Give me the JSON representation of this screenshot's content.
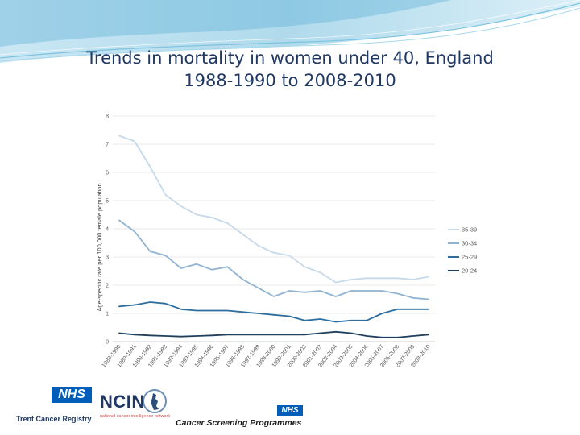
{
  "slide": {
    "title_line1": "Trends in mortality in women under 40, England",
    "title_line2": "1988-1990 to 2008-2010"
  },
  "chart_data": {
    "type": "line",
    "title": "",
    "xlabel": "",
    "ylabel": "Age-specific rate per 100,000 female population",
    "ylim": [
      0,
      8
    ],
    "yticks": [
      0,
      1,
      2,
      3,
      4,
      5,
      6,
      7,
      8
    ],
    "grid": true,
    "legend_position": "right",
    "categories": [
      "1988-1990",
      "1989-1991",
      "1990-1992",
      "1991-1993",
      "1992-1994",
      "1993-1995",
      "1994-1996",
      "1995-1997",
      "1996-1998",
      "1997-1999",
      "1998-2000",
      "1999-2001",
      "2000-2002",
      "2001-2003",
      "2002-2004",
      "2003-2005",
      "2004-2006",
      "2005-2007",
      "2006-2008",
      "2007-2009",
      "2008-2010"
    ],
    "series": [
      {
        "name": "35-39",
        "color": "#c5d9ea",
        "values": [
          7.3,
          7.1,
          6.2,
          5.2,
          4.8,
          4.5,
          4.4,
          4.2,
          3.8,
          3.4,
          3.15,
          3.05,
          2.65,
          2.45,
          2.1,
          2.2,
          2.25,
          2.25,
          2.25,
          2.2,
          2.3
        ]
      },
      {
        "name": "30-34",
        "color": "#8fb3d1",
        "values": [
          4.3,
          3.9,
          3.2,
          3.05,
          2.6,
          2.75,
          2.55,
          2.65,
          2.2,
          1.9,
          1.6,
          1.8,
          1.75,
          1.8,
          1.6,
          1.8,
          1.8,
          1.8,
          1.7,
          1.55,
          1.5
        ]
      },
      {
        "name": "25-29",
        "color": "#2e6e9e",
        "values": [
          1.25,
          1.3,
          1.4,
          1.35,
          1.15,
          1.1,
          1.1,
          1.1,
          1.05,
          1.0,
          0.95,
          0.9,
          0.75,
          0.8,
          0.7,
          0.75,
          0.75,
          1.0,
          1.15,
          1.15,
          1.15
        ]
      },
      {
        "name": "20-24",
        "color": "#1f3f5e",
        "values": [
          0.3,
          0.25,
          0.22,
          0.2,
          0.18,
          0.2,
          0.22,
          0.25,
          0.25,
          0.25,
          0.25,
          0.25,
          0.25,
          0.3,
          0.35,
          0.3,
          0.2,
          0.15,
          0.15,
          0.2,
          0.25
        ]
      }
    ]
  },
  "footer": {
    "nhs_mark": "NHS",
    "trent_caption": "Trent Cancer Registry",
    "ncin_mark": "NCIN",
    "ncin_sub": "national cancer intelligence network",
    "screening_caption": "Cancer Screening Programmes"
  }
}
